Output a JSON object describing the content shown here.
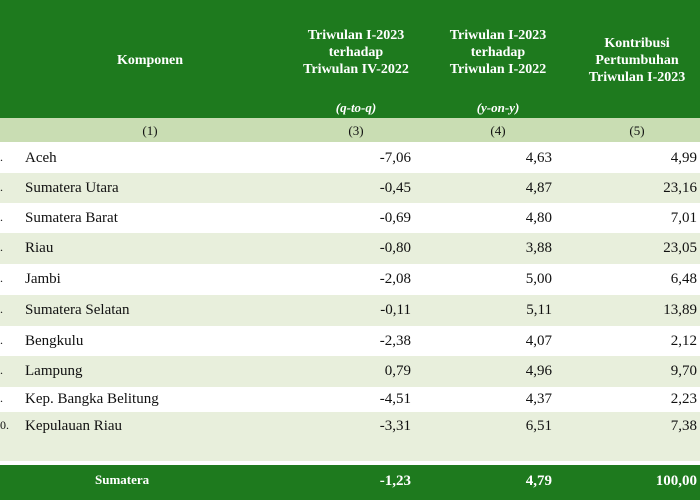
{
  "header": {
    "komponen": "Komponen",
    "col3_lines": [
      "Triwulan I-2023",
      "terhadap",
      "Triwulan IV-2022"
    ],
    "col3_sub": "(q-to-q)",
    "col4_lines": [
      "Triwulan I-2023",
      "terhadap",
      "Triwulan I-2022"
    ],
    "col4_sub": "(y-on-y)",
    "col5_lines": [
      "Kontribusi",
      "Pertumbuhan",
      "Triwulan I-2023"
    ]
  },
  "column_numbers": [
    "(1)",
    "(3)",
    "(4)",
    "(5)"
  ],
  "rows": [
    {
      "no": ".",
      "name": "Aceh",
      "qtoq": "-7,06",
      "yony": "4,63",
      "kontribusi": "4,99"
    },
    {
      "no": ".",
      "name": "Sumatera Utara",
      "qtoq": "-0,45",
      "yony": "4,87",
      "kontribusi": "23,16"
    },
    {
      "no": ".",
      "name": "Sumatera Barat",
      "qtoq": "-0,69",
      "yony": "4,80",
      "kontribusi": "7,01"
    },
    {
      "no": ".",
      "name": "Riau",
      "qtoq": "-0,80",
      "yony": "3,88",
      "kontribusi": "23,05"
    },
    {
      "no": ".",
      "name": "Jambi",
      "qtoq": "-2,08",
      "yony": "5,00",
      "kontribusi": "6,48"
    },
    {
      "no": ".",
      "name": "Sumatera Selatan",
      "qtoq": "-0,11",
      "yony": "5,11",
      "kontribusi": "13,89"
    },
    {
      "no": ".",
      "name": "Bengkulu",
      "qtoq": "-2,38",
      "yony": "4,07",
      "kontribusi": "2,12"
    },
    {
      "no": ".",
      "name": "Lampung",
      "qtoq": "0,79",
      "yony": "4,96",
      "kontribusi": "9,70"
    },
    {
      "no": ".",
      "name": "Kep. Bangka Belitung",
      "qtoq": "-4,51",
      "yony": "4,37",
      "kontribusi": "2,23"
    },
    {
      "no": "0.",
      "name": "Kepulauan Riau",
      "qtoq": "-3,31",
      "yony": "6,51",
      "kontribusi": "7,38"
    }
  ],
  "total": {
    "name": "Sumatera",
    "qtoq": "-1,23",
    "yony": "4,79",
    "kontribusi": "100,00"
  }
}
